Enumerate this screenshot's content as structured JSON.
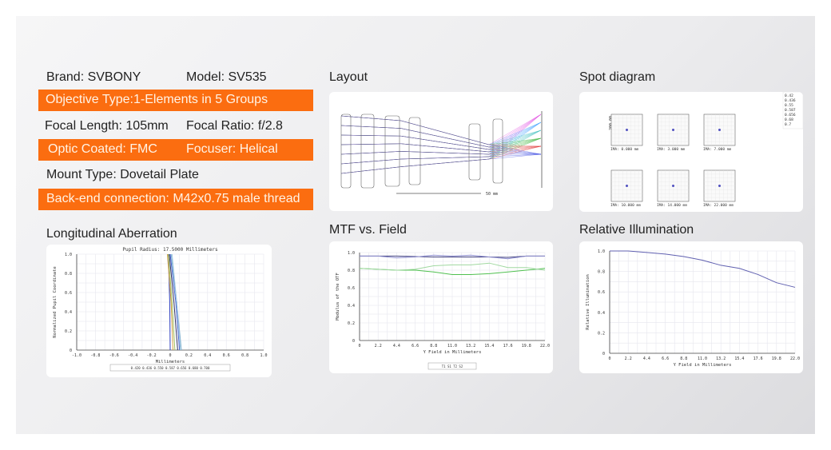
{
  "specs": {
    "brand": "Brand: SVBONY",
    "model": "Model: SV535",
    "objective": "Objective Type:1-Elements in 5 Groups",
    "focal_length": "Focal Length: 105mm",
    "focal_ratio": "Focal Ratio: f/2.8",
    "coating": "Optic Coated: FMC",
    "focuser": "Focuser: Helical",
    "mount": "Mount Type: Dovetail Plate",
    "backend": "Back-end connection: M42x0.75 male thread",
    "accent": "#fb6d10"
  },
  "titles": {
    "layout": "Layout",
    "spot": "Spot diagram",
    "long": "Longitudinal Aberration",
    "mtf": "MTF vs. Field",
    "ri": "Relative Illumination"
  },
  "layout": {
    "scale": "50 mm"
  },
  "spot": {
    "scale": "200.00",
    "fields": [
      "IMA: 0.000 mm",
      "IMA: 3.000 mm",
      "IMA: 7.000 mm",
      "IMA: 10.000 mm",
      "IMA: 14.000 mm",
      "IMA: 22.000 mm"
    ],
    "legend": [
      "0.42",
      "0.436",
      "0.55",
      "0.587",
      "0.656",
      "0.68",
      "0.7"
    ]
  },
  "chart_data": [
    {
      "type": "line",
      "title": "Pupil Radius: 17.5000 Millimeters",
      "xlabel": "Millimeters",
      "ylabel": "Normalized Pupil Coordinate",
      "xlim": [
        -1,
        1
      ],
      "ylim": [
        0,
        1
      ],
      "xticks": [
        "-1.0",
        "-0.8",
        "-0.6",
        "-0.4",
        "-0.2",
        "0",
        "0.2",
        "0.4",
        "0.6",
        "0.8",
        "1.0"
      ],
      "yticks": [
        "0",
        "0.2",
        "0.4",
        "0.6",
        "0.8",
        "1.0"
      ],
      "legend_text": "0.420 0.436 0.550 0.587 0.656 0.680 0.700",
      "series": [
        {
          "name": "0.420",
          "color": "#3040c0",
          "y": [
            0,
            0.5,
            1
          ],
          "x": [
            0.0,
            -0.005,
            -0.02
          ]
        },
        {
          "name": "0.436",
          "color": "#d0a040",
          "y": [
            0,
            0.5,
            1
          ],
          "x": [
            0.03,
            0.01,
            -0.03
          ]
        },
        {
          "name": "0.550",
          "color": "#a0c060",
          "y": [
            0,
            0.5,
            1
          ],
          "x": [
            0.05,
            0.02,
            -0.02
          ]
        },
        {
          "name": "0.587",
          "color": "#303060",
          "y": [
            0,
            0.5,
            1
          ],
          "x": [
            0.08,
            0.04,
            -0.01
          ]
        },
        {
          "name": "0.656",
          "color": "#4060d0",
          "y": [
            0,
            0.5,
            1
          ],
          "x": [
            0.1,
            0.06,
            0.0
          ]
        },
        {
          "name": "0.680",
          "color": "#80b0d0",
          "y": [
            0,
            0.5,
            1
          ],
          "x": [
            0.12,
            0.07,
            0.01
          ]
        },
        {
          "name": "0.700",
          "color": "#a0c8e0",
          "y": [
            0,
            0.5,
            1
          ],
          "x": [
            0.11,
            0.07,
            0.02
          ]
        }
      ]
    },
    {
      "type": "line",
      "xlabel": "Y Field in Millimeters",
      "ylabel": "Modulus of the OTF",
      "xlim": [
        0,
        22
      ],
      "ylim": [
        0,
        1
      ],
      "xticks": [
        "0",
        "2.2",
        "4.4",
        "6.6",
        "8.8",
        "11.0",
        "13.2",
        "15.4",
        "17.6",
        "19.8",
        "22.0"
      ],
      "yticks": [
        "0",
        "0.2",
        "0.4",
        "0.6",
        "0.8",
        "1.0"
      ],
      "legend_text": "T1 S1 T2 S2",
      "series": [
        {
          "name": "T1",
          "color": "#404080",
          "x": [
            0,
            2.2,
            4.4,
            6.6,
            8.8,
            11,
            13.2,
            15.4,
            17.6,
            19.8,
            22
          ],
          "y": [
            0.96,
            0.96,
            0.96,
            0.955,
            0.95,
            0.95,
            0.95,
            0.95,
            0.945,
            0.96,
            0.96
          ]
        },
        {
          "name": "S1",
          "color": "#9090d0",
          "x": [
            0,
            2.2,
            4.4,
            6.6,
            8.8,
            11,
            13.2,
            15.4,
            17.6,
            19.8,
            22
          ],
          "y": [
            0.96,
            0.96,
            0.94,
            0.95,
            0.97,
            0.96,
            0.97,
            0.95,
            0.93,
            0.96,
            0.96
          ]
        },
        {
          "name": "T2",
          "color": "#50c050",
          "x": [
            0,
            2.2,
            4.4,
            6.6,
            8.8,
            11,
            13.2,
            15.4,
            17.6,
            19.8,
            22
          ],
          "y": [
            0.82,
            0.81,
            0.8,
            0.8,
            0.78,
            0.75,
            0.75,
            0.76,
            0.78,
            0.8,
            0.82
          ]
        },
        {
          "name": "S2",
          "color": "#a0d8a0",
          "x": [
            0,
            2.2,
            4.4,
            6.6,
            8.8,
            11,
            13.2,
            15.4,
            17.6,
            19.8,
            22
          ],
          "y": [
            0.82,
            0.81,
            0.8,
            0.81,
            0.85,
            0.86,
            0.86,
            0.88,
            0.83,
            0.83,
            0.8
          ]
        }
      ]
    },
    {
      "type": "line",
      "xlabel": "Y Field in Millimeters",
      "ylabel": "Relative Illumination",
      "xlim": [
        0,
        22
      ],
      "ylim": [
        0,
        1
      ],
      "xticks": [
        "0",
        "2.2",
        "4.4",
        "6.6",
        "8.8",
        "11.0",
        "13.2",
        "15.4",
        "17.6",
        "19.8",
        "22.0"
      ],
      "yticks": [
        "0",
        "0.2",
        "0.4",
        "0.6",
        "0.8",
        "1.0"
      ],
      "series": [
        {
          "name": "RI",
          "color": "#6060b0",
          "x": [
            0,
            2.2,
            4.4,
            6.6,
            8.8,
            11,
            13.2,
            15.4,
            17.6,
            19.8,
            22
          ],
          "y": [
            1.0,
            1.0,
            0.985,
            0.97,
            0.945,
            0.91,
            0.86,
            0.83,
            0.77,
            0.69,
            0.645
          ]
        }
      ]
    }
  ]
}
